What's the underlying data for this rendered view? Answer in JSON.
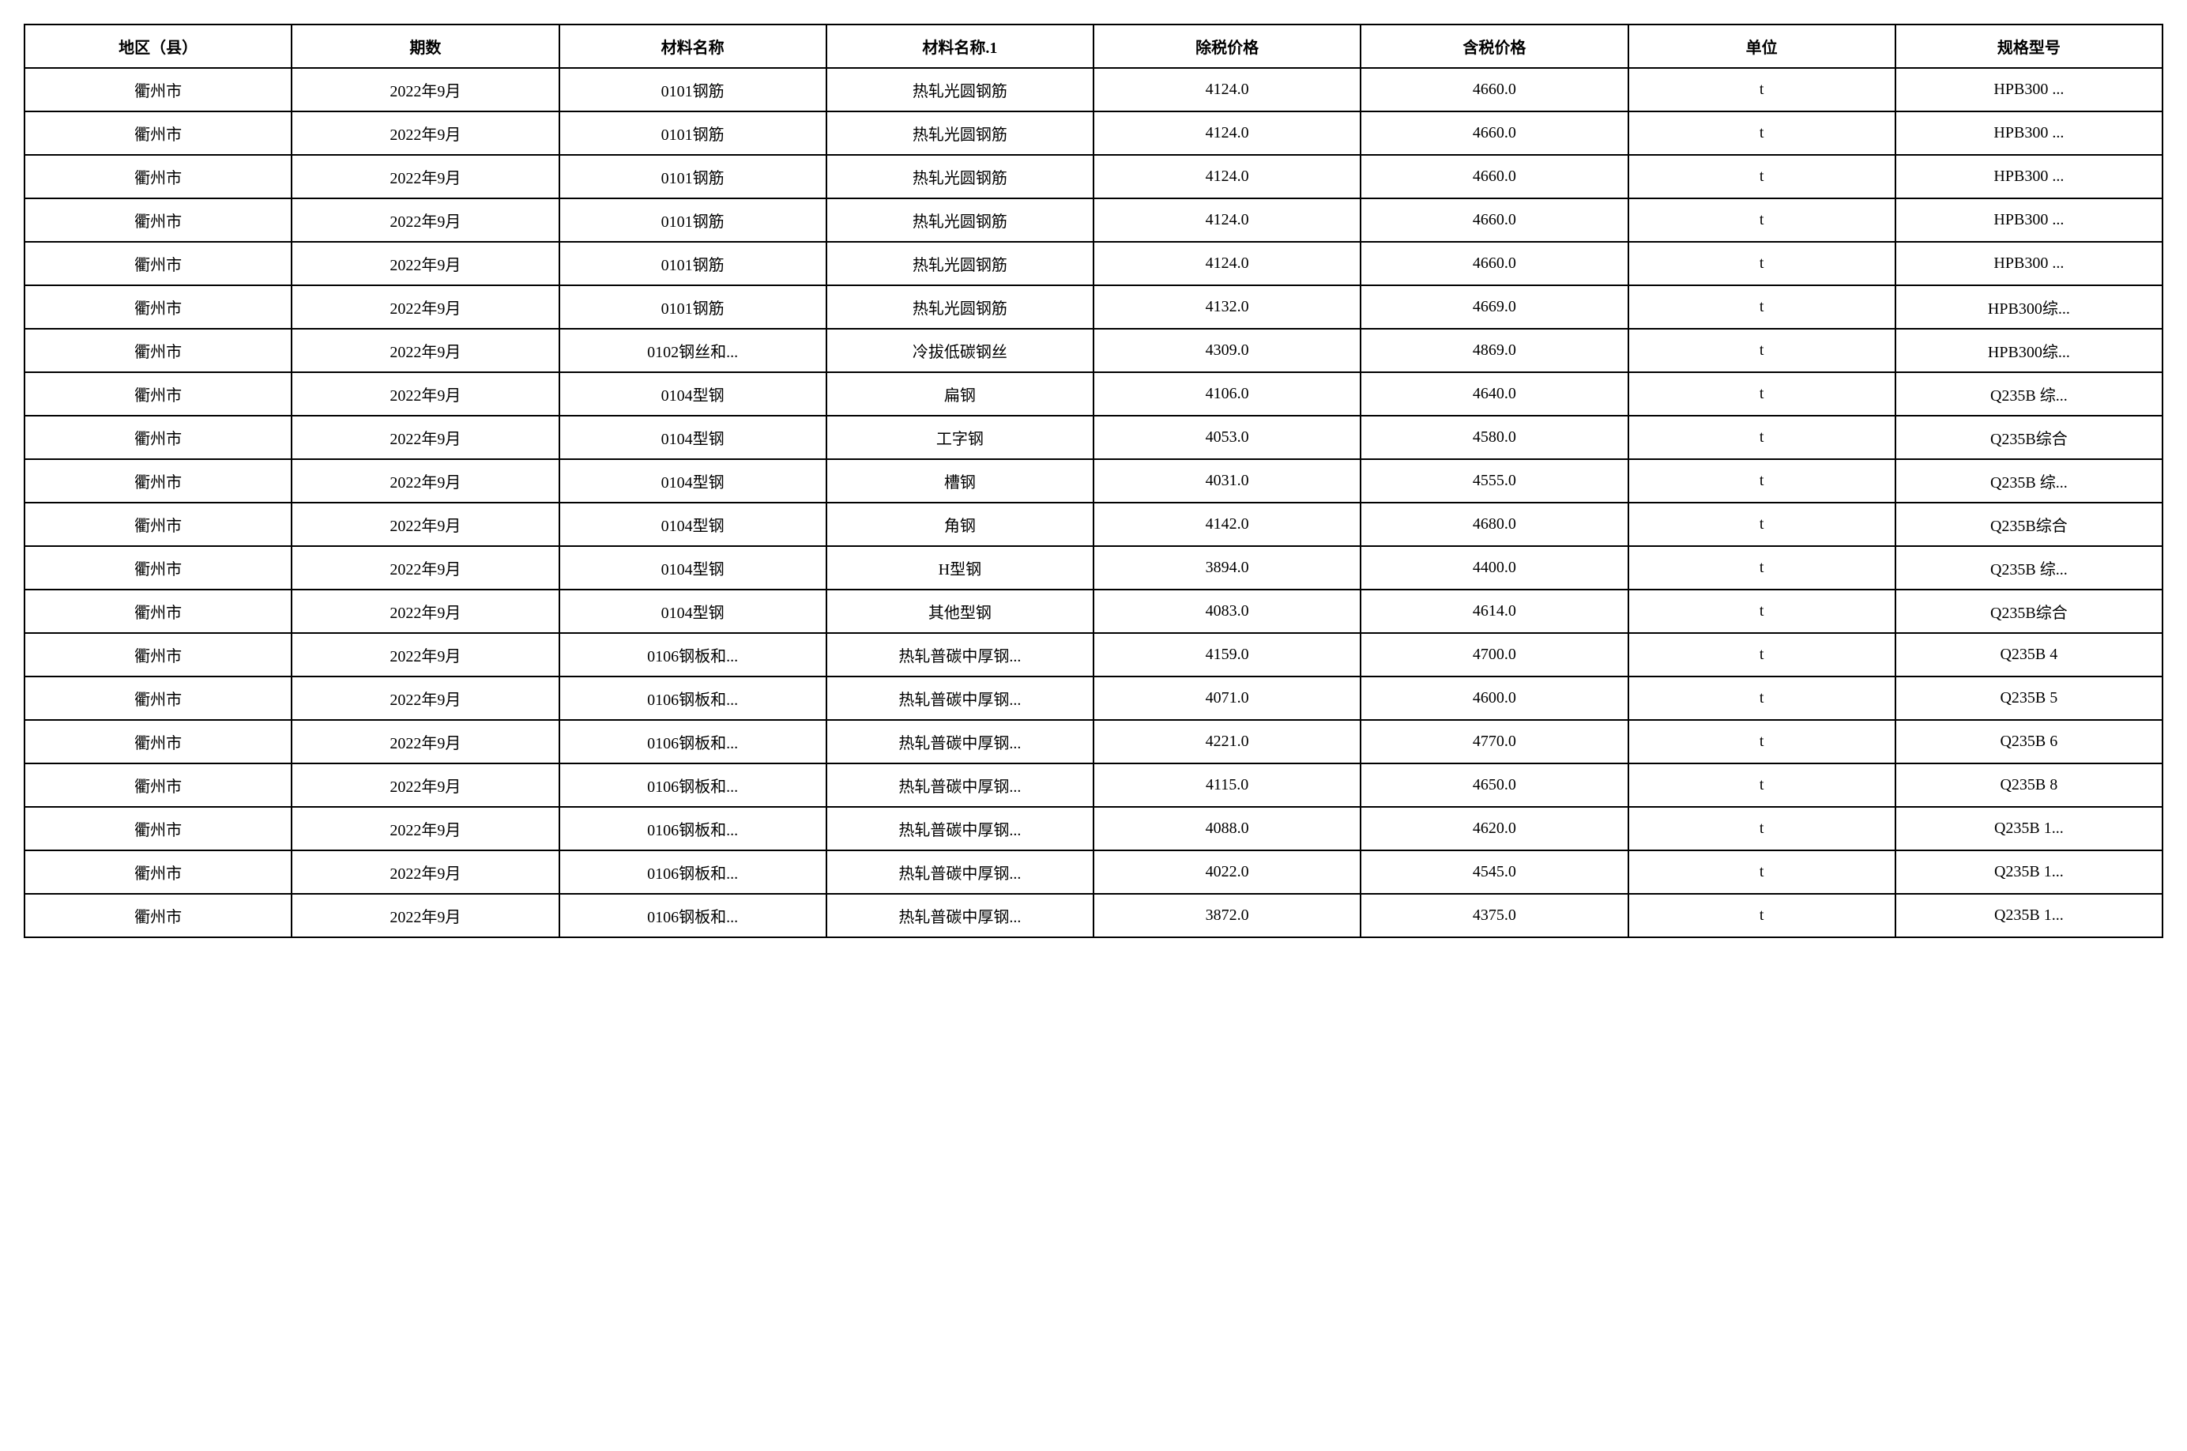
{
  "table": {
    "columns": [
      "地区（县）",
      "期数",
      "材料名称",
      "材料名称.1",
      "除税价格",
      "含税价格",
      "单位",
      "规格型号"
    ],
    "rows": [
      [
        "衢州市",
        "2022年9月",
        "0101钢筋",
        "热轧光圆钢筋",
        "4124.0",
        "4660.0",
        "t",
        "HPB300 ..."
      ],
      [
        "衢州市",
        "2022年9月",
        "0101钢筋",
        "热轧光圆钢筋",
        "4124.0",
        "4660.0",
        "t",
        "HPB300 ..."
      ],
      [
        "衢州市",
        "2022年9月",
        "0101钢筋",
        "热轧光圆钢筋",
        "4124.0",
        "4660.0",
        "t",
        "HPB300 ..."
      ],
      [
        "衢州市",
        "2022年9月",
        "0101钢筋",
        "热轧光圆钢筋",
        "4124.0",
        "4660.0",
        "t",
        "HPB300 ..."
      ],
      [
        "衢州市",
        "2022年9月",
        "0101钢筋",
        "热轧光圆钢筋",
        "4124.0",
        "4660.0",
        "t",
        "HPB300 ..."
      ],
      [
        "衢州市",
        "2022年9月",
        "0101钢筋",
        "热轧光圆钢筋",
        "4132.0",
        "4669.0",
        "t",
        "HPB300综..."
      ],
      [
        "衢州市",
        "2022年9月",
        "0102钢丝和...",
        "冷拔低碳钢丝",
        "4309.0",
        "4869.0",
        "t",
        "HPB300综..."
      ],
      [
        "衢州市",
        "2022年9月",
        "0104型钢",
        "扁钢",
        "4106.0",
        "4640.0",
        "t",
        "Q235B 综..."
      ],
      [
        "衢州市",
        "2022年9月",
        "0104型钢",
        "工字钢",
        "4053.0",
        "4580.0",
        "t",
        "Q235B综合"
      ],
      [
        "衢州市",
        "2022年9月",
        "0104型钢",
        "槽钢",
        "4031.0",
        "4555.0",
        "t",
        "Q235B 综..."
      ],
      [
        "衢州市",
        "2022年9月",
        "0104型钢",
        "角钢",
        "4142.0",
        "4680.0",
        "t",
        "Q235B综合"
      ],
      [
        "衢州市",
        "2022年9月",
        "0104型钢",
        "H型钢",
        "3894.0",
        "4400.0",
        "t",
        "Q235B 综..."
      ],
      [
        "衢州市",
        "2022年9月",
        "0104型钢",
        "其他型钢",
        "4083.0",
        "4614.0",
        "t",
        "Q235B综合"
      ],
      [
        "衢州市",
        "2022年9月",
        "0106钢板和...",
        "热轧普碳中厚钢...",
        "4159.0",
        "4700.0",
        "t",
        "Q235B 4"
      ],
      [
        "衢州市",
        "2022年9月",
        "0106钢板和...",
        "热轧普碳中厚钢...",
        "4071.0",
        "4600.0",
        "t",
        "Q235B 5"
      ],
      [
        "衢州市",
        "2022年9月",
        "0106钢板和...",
        "热轧普碳中厚钢...",
        "4221.0",
        "4770.0",
        "t",
        "Q235B 6"
      ],
      [
        "衢州市",
        "2022年9月",
        "0106钢板和...",
        "热轧普碳中厚钢...",
        "4115.0",
        "4650.0",
        "t",
        "Q235B 8"
      ],
      [
        "衢州市",
        "2022年9月",
        "0106钢板和...",
        "热轧普碳中厚钢...",
        "4088.0",
        "4620.0",
        "t",
        "Q235B 1..."
      ],
      [
        "衢州市",
        "2022年9月",
        "0106钢板和...",
        "热轧普碳中厚钢...",
        "4022.0",
        "4545.0",
        "t",
        "Q235B 1..."
      ],
      [
        "衢州市",
        "2022年9月",
        "0106钢板和...",
        "热轧普碳中厚钢...",
        "3872.0",
        "4375.0",
        "t",
        "Q235B 1..."
      ]
    ],
    "header_fontsize": 20,
    "cell_fontsize": 20,
    "border_color": "#000000",
    "background_color": "#ffffff",
    "text_color": "#000000"
  }
}
